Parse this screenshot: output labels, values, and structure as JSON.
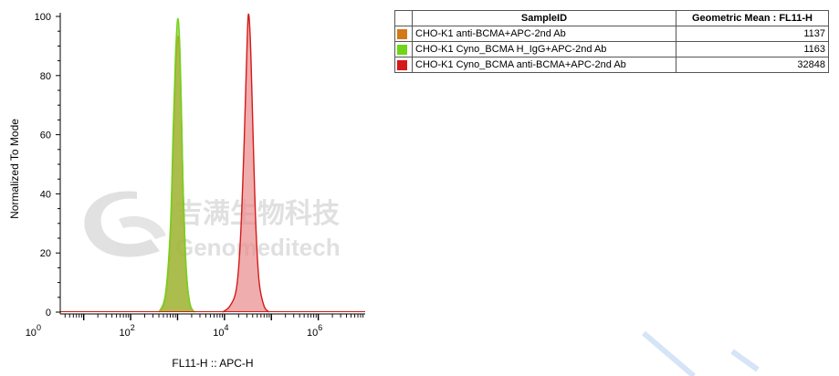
{
  "chart_data": {
    "type": "area",
    "xlabel": "FL11-H :: APC-H",
    "ylabel": "Normalized To Mode",
    "x_scale": "log",
    "xlim": [
      3.16,
      10000000
    ],
    "ylim": [
      0,
      100
    ],
    "x_ticks": [
      {
        "base": "10",
        "exp": "0",
        "value": 1
      },
      {
        "base": "10",
        "exp": "2",
        "value": 100
      },
      {
        "base": "10",
        "exp": "4",
        "value": 10000
      },
      {
        "base": "10",
        "exp": "6",
        "value": 1000000
      }
    ],
    "y_ticks": [
      "0",
      "20",
      "40",
      "60",
      "80",
      "100"
    ],
    "series": [
      {
        "name": "CHO-K1  anti-BCMA+APC-2nd Ab",
        "color": "#d4781a",
        "fill": "#b99a3c",
        "x": [
          400,
          550,
          700,
          800,
          900,
          1000,
          1100,
          1200,
          1300,
          1450,
          1650,
          1900,
          2300
        ],
        "y": [
          0,
          5,
          25,
          55,
          80,
          93,
          88,
          70,
          45,
          22,
          8,
          2,
          0
        ]
      },
      {
        "name": "CHO-K1 Cyno_BCMA H_IgG+APC-2nd Ab",
        "color": "#6fd41a",
        "fill": "#9cbf3a",
        "x": [
          400,
          550,
          700,
          800,
          900,
          1000,
          1100,
          1200,
          1300,
          1450,
          1650,
          1900,
          2300
        ],
        "y": [
          0,
          6,
          28,
          60,
          86,
          99,
          93,
          72,
          46,
          22,
          8,
          2,
          0
        ]
      },
      {
        "name": "CHO-K1 Cyno_BCMA anti-BCMA+APC-2nd Ab",
        "color": "#d41a1a",
        "fill": "#e88a8a",
        "x": [
          9000,
          13000,
          18000,
          22000,
          26000,
          29000,
          32000,
          35000,
          38000,
          42000,
          47000,
          55000,
          70000,
          90000
        ],
        "y": [
          0,
          2,
          8,
          25,
          55,
          80,
          100,
          95,
          78,
          52,
          28,
          10,
          2,
          0
        ]
      }
    ],
    "legend": {
      "position": "top-right",
      "header_sample": "SampleID",
      "header_value": "Geometric Mean : FL11-H",
      "rows": [
        {
          "color": "#d4781a",
          "label": "CHO-K1  anti-BCMA+APC-2nd Ab",
          "value": "1137"
        },
        {
          "color": "#6fd41a",
          "label": "CHO-K1 Cyno_BCMA H_IgG+APC-2nd Ab",
          "value": "1163"
        },
        {
          "color": "#d41a1a",
          "label": "CHO-K1 Cyno_BCMA anti-BCMA+APC-2nd Ab",
          "value": "32848"
        }
      ]
    }
  },
  "watermark": {
    "logo_icon": "genomeditech-logo-icon",
    "cn_text": "吉满生物科技",
    "en_text": "Genomeditech",
    "color": "#c8c8c8"
  }
}
